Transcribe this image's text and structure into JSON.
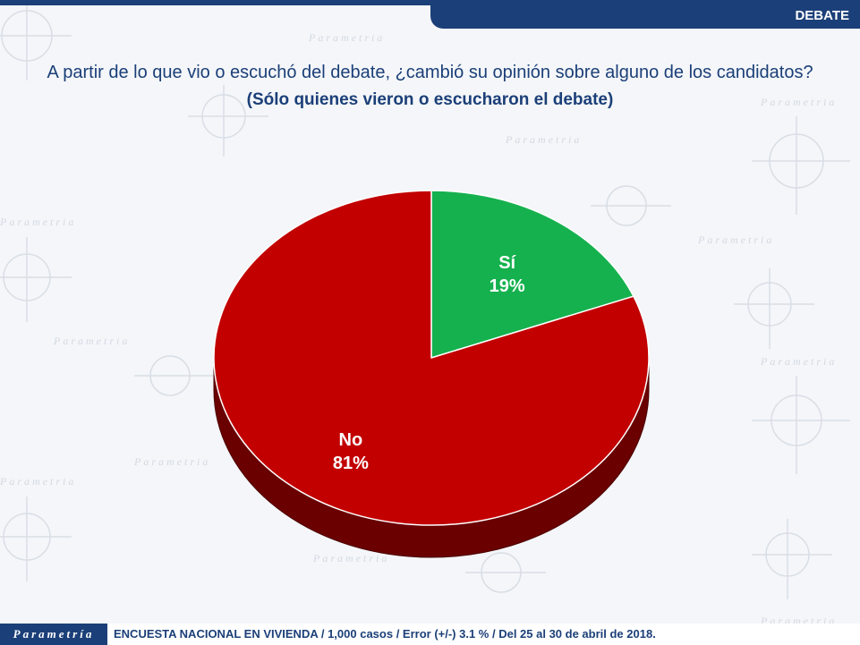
{
  "header": {
    "section_tab": "DEBATE"
  },
  "title": "A partir de lo que vio o escuchó del debate, ¿cambió su opinión sobre alguno de los candidatos?",
  "subtitle": "(Sólo quienes vieron o escucharon el debate)",
  "watermark_text": "Parametria",
  "chart_data": {
    "type": "pie",
    "slices": [
      {
        "label": "Sí",
        "value": 19,
        "value_label": "19%",
        "color": "#15b14e"
      },
      {
        "label": "No",
        "value": 81,
        "value_label": "81%",
        "color": "#c20000"
      }
    ],
    "side_color": "#6a0000",
    "start": "12 o'clock, clockwise",
    "legend": "none, labels inside slices"
  },
  "footer": {
    "logo_text": "Parametría",
    "note": "ENCUESTA NACIONAL EN VIVIENDA / 1,000 casos / Error (+/-) 3.1 % / Del 25 al 30 de abril de 2018."
  },
  "colors": {
    "brand_blue": "#1b3f78",
    "background": "#f4f6f9"
  }
}
